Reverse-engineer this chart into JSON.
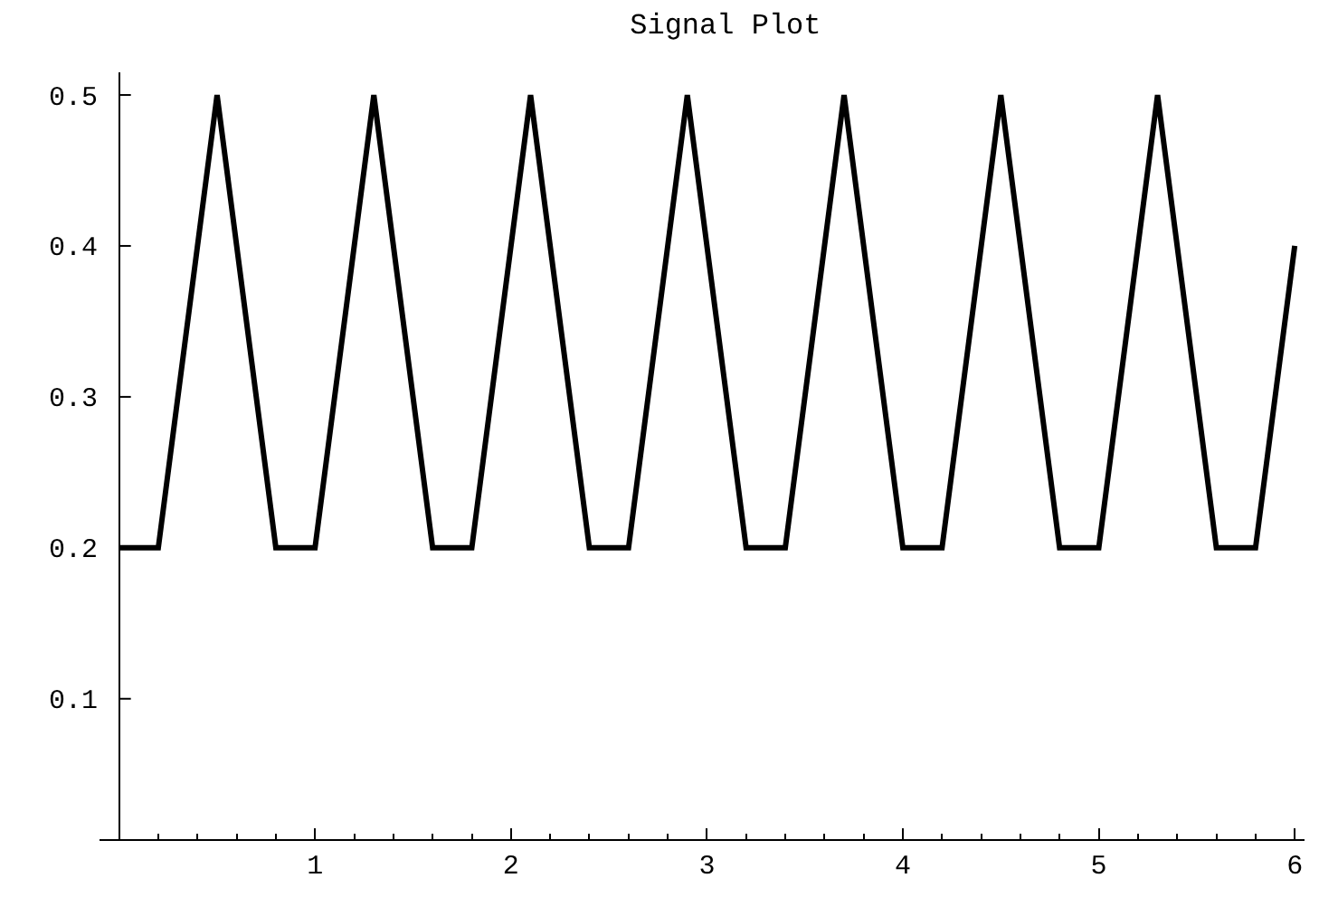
{
  "chart_data": {
    "type": "line",
    "title": "Signal Plot",
    "series": [
      {
        "color": "#000000",
        "x": [
          0,
          0.2,
          0.5,
          0.8,
          1.0,
          1.3,
          1.6,
          1.8,
          2.1,
          2.4,
          2.6,
          2.9,
          3.2,
          3.4,
          3.7,
          4.0,
          4.2,
          4.5,
          4.8,
          5.0,
          5.3,
          5.6,
          5.8,
          6.0
        ],
        "values": [
          0.2,
          0.2,
          0.5,
          0.2,
          0.2,
          0.5,
          0.2,
          0.2,
          0.5,
          0.2,
          0.2,
          0.5,
          0.2,
          0.2,
          0.5,
          0.2,
          0.2,
          0.5,
          0.2,
          0.2,
          0.5,
          0.2,
          0.2,
          0.4
        ]
      }
    ],
    "xlim": [
      -0.1,
      6.05
    ],
    "ylim": [
      0.007,
      0.515
    ],
    "xticks": [
      1,
      2,
      3,
      4,
      5,
      6
    ],
    "yticks": [
      0.1,
      0.2,
      0.3,
      0.4,
      0.5
    ],
    "marker": "none",
    "line_style": "solid"
  }
}
